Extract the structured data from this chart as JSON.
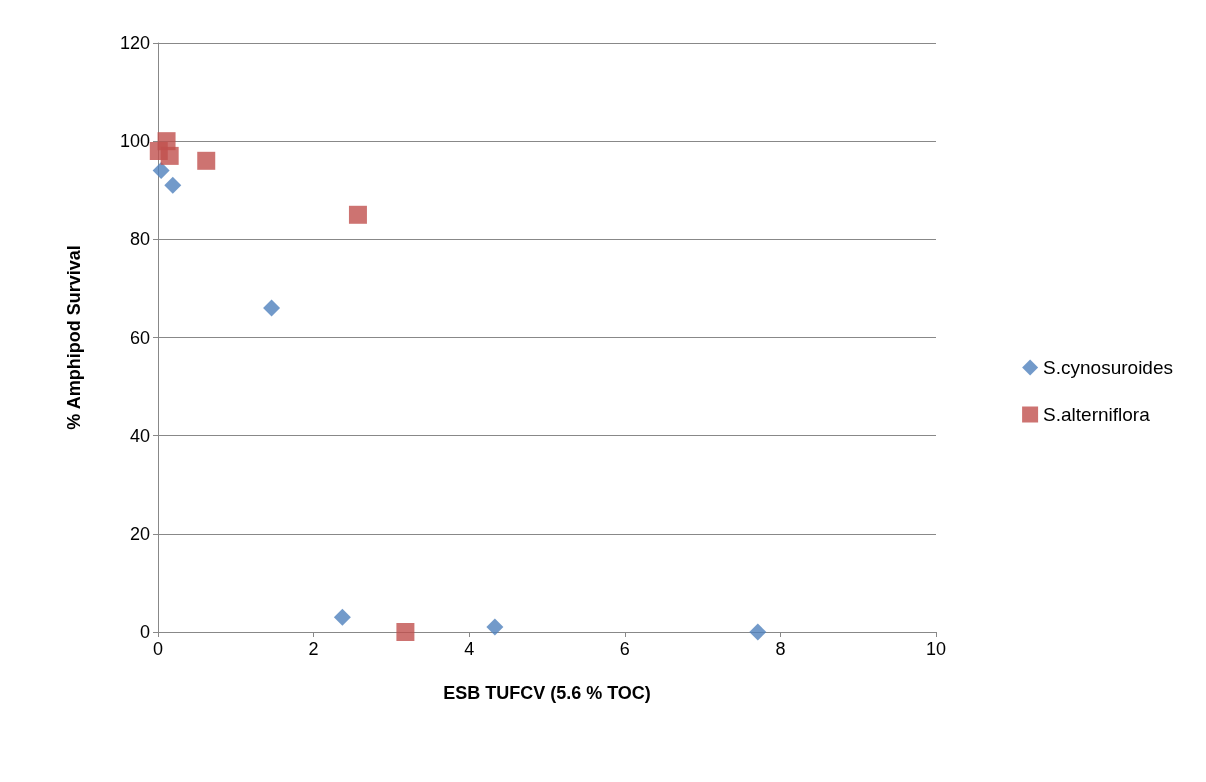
{
  "chart_data": {
    "type": "scatter",
    "xlabel": "ESB TUFCV (5.6 % TOC)",
    "ylabel": "% Amphipod Survival",
    "xlim": [
      0,
      10
    ],
    "xticks": [
      0,
      2,
      4,
      6,
      8,
      10
    ],
    "ylim": [
      0,
      120
    ],
    "yticks": [
      0,
      20,
      40,
      60,
      80,
      100,
      120
    ],
    "grid": "y",
    "legend": "right",
    "series": [
      {
        "name": "S.cynosuroides",
        "color": "#4f81bd",
        "marker": "diamond",
        "x": [
          0.04,
          0.19,
          1.46,
          2.37,
          4.33,
          7.71
        ],
        "values": [
          94,
          91,
          66,
          3,
          1,
          0
        ]
      },
      {
        "name": "S.alterniflora",
        "color": "#c0504d",
        "marker": "square",
        "x": [
          0.01,
          0.11,
          0.15,
          0.62,
          2.57,
          3.18
        ],
        "values": [
          98,
          100,
          97,
          96,
          85,
          0
        ]
      }
    ]
  }
}
